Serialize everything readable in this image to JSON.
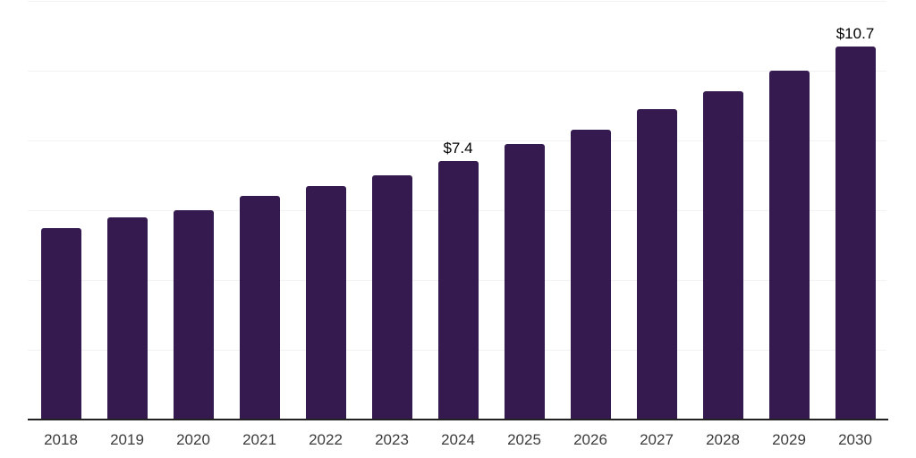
{
  "chart_data": {
    "type": "bar",
    "title": "",
    "xlabel": "",
    "ylabel": "",
    "categories": [
      "2018",
      "2019",
      "2020",
      "2021",
      "2022",
      "2023",
      "2024",
      "2025",
      "2026",
      "2027",
      "2028",
      "2029",
      "2030"
    ],
    "values": [
      5.5,
      5.8,
      6.0,
      6.4,
      6.7,
      7.0,
      7.4,
      7.9,
      8.3,
      8.9,
      9.4,
      10.0,
      10.7
    ],
    "value_labels": {
      "2024": "$7.4",
      "2030": "$10.7"
    },
    "ylim": [
      0,
      12
    ],
    "gridline_step": 2,
    "grid": "horizontal",
    "y_tick_labels_shown": false,
    "legend": "none",
    "colors": {
      "background": "#ffffff",
      "bar": "#341a4e",
      "axis_line": "#222222",
      "gridline": "#f2f2f4",
      "tick_label": "#3c3c3c",
      "data_label": "#000000"
    }
  }
}
